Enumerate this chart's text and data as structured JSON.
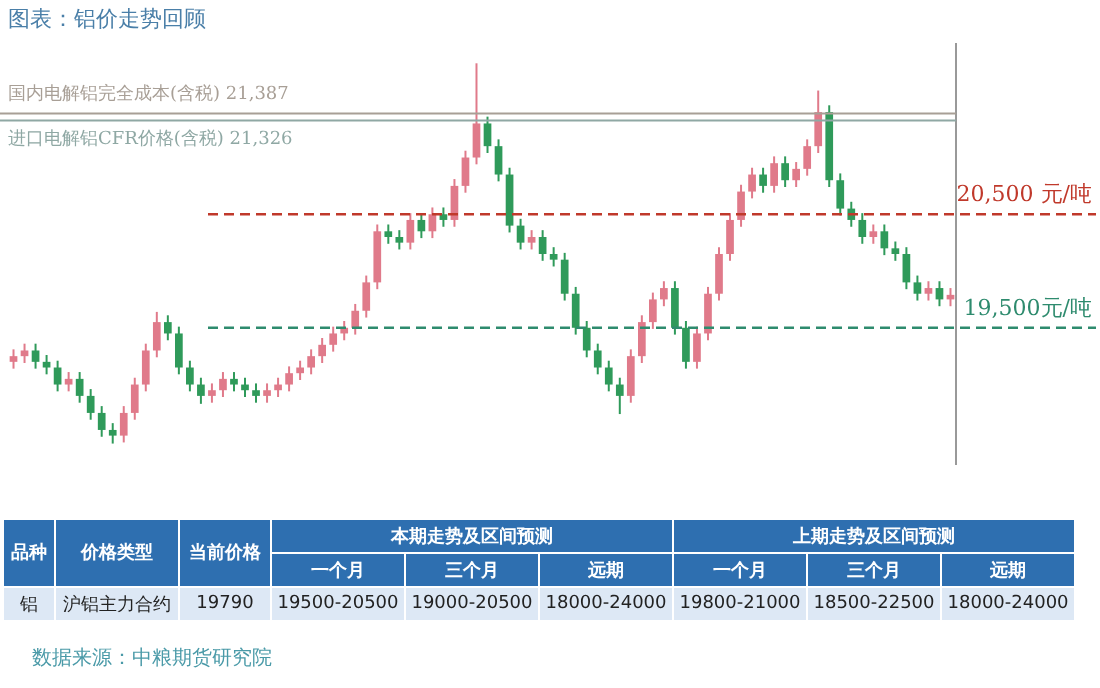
{
  "chart_data": [
    {
      "type": "candlestick",
      "title": "图表：铝价走势回顾",
      "categories": [
        null,
        null,
        null,
        null,
        null,
        null,
        null,
        null,
        null,
        null,
        null,
        null,
        null,
        null,
        null,
        null,
        null,
        null,
        null,
        null,
        null,
        null,
        null,
        null,
        null,
        null,
        null,
        null,
        null,
        null,
        null,
        null,
        null,
        null,
        null,
        null,
        null,
        null,
        null,
        null,
        null,
        null,
        null,
        null,
        null,
        null,
        null,
        null,
        null,
        null,
        null,
        null,
        null,
        null,
        null,
        null,
        null,
        null,
        null,
        null,
        null,
        null,
        null,
        null,
        null,
        null,
        null,
        null,
        null,
        null,
        null,
        null,
        null,
        null,
        null,
        null,
        null,
        null,
        null,
        null,
        null,
        null,
        null,
        null,
        null,
        null
      ],
      "ohlc": [
        [
          19200,
          19310,
          19140,
          19250
        ],
        [
          19250,
          19360,
          19190,
          19300
        ],
        [
          19300,
          19360,
          19140,
          19200
        ],
        [
          19200,
          19260,
          19090,
          19150
        ],
        [
          19150,
          19210,
          18940,
          19000
        ],
        [
          19000,
          19110,
          18940,
          19050
        ],
        [
          19050,
          19110,
          18840,
          18900
        ],
        [
          18900,
          18960,
          18690,
          18750
        ],
        [
          18750,
          18810,
          18540,
          18600
        ],
        [
          18600,
          18660,
          18480,
          18550
        ],
        [
          18550,
          18810,
          18490,
          18750
        ],
        [
          18750,
          19060,
          18690,
          19000
        ],
        [
          19000,
          19360,
          18940,
          19300
        ],
        [
          19300,
          19640,
          19240,
          19550
        ],
        [
          19550,
          19610,
          19390,
          19450
        ],
        [
          19450,
          19510,
          19090,
          19150
        ],
        [
          19150,
          19210,
          18940,
          19000
        ],
        [
          19000,
          19060,
          18830,
          18900
        ],
        [
          18900,
          19010,
          18840,
          18950
        ],
        [
          18950,
          19110,
          18890,
          19050
        ],
        [
          19050,
          19110,
          18940,
          19000
        ],
        [
          19000,
          19060,
          18890,
          18950
        ],
        [
          18950,
          19010,
          18840,
          18900
        ],
        [
          18900,
          19010,
          18840,
          18950
        ],
        [
          18950,
          19060,
          18890,
          19000
        ],
        [
          19000,
          19160,
          18940,
          19100
        ],
        [
          19100,
          19210,
          19040,
          19150
        ],
        [
          19150,
          19310,
          19090,
          19250
        ],
        [
          19250,
          19410,
          19190,
          19350
        ],
        [
          19350,
          19510,
          19290,
          19450
        ],
        [
          19450,
          19560,
          19390,
          19500
        ],
        [
          19500,
          19710,
          19440,
          19650
        ],
        [
          19650,
          19960,
          19590,
          19900
        ],
        [
          19900,
          20410,
          19840,
          20350
        ],
        [
          20350,
          20410,
          20240,
          20300
        ],
        [
          20300,
          20360,
          20190,
          20250
        ],
        [
          20250,
          20510,
          20190,
          20450
        ],
        [
          20450,
          20510,
          20290,
          20350
        ],
        [
          20350,
          20560,
          20290,
          20500
        ],
        [
          20500,
          20560,
          20390,
          20450
        ],
        [
          20450,
          20810,
          20390,
          20750
        ],
        [
          20750,
          21060,
          20690,
          21000
        ],
        [
          21000,
          21830,
          20940,
          21300
        ],
        [
          21300,
          21360,
          21040,
          21100
        ],
        [
          21100,
          21160,
          20790,
          20850
        ],
        [
          20850,
          20910,
          20340,
          20400
        ],
        [
          20400,
          20460,
          20190,
          20250
        ],
        [
          20250,
          20360,
          20190,
          20300
        ],
        [
          20300,
          20360,
          20090,
          20150
        ],
        [
          20150,
          20210,
          20040,
          20100
        ],
        [
          20100,
          20160,
          19740,
          19800
        ],
        [
          19800,
          19860,
          19440,
          19500
        ],
        [
          19500,
          19560,
          19240,
          19300
        ],
        [
          19300,
          19360,
          19090,
          19150
        ],
        [
          19150,
          19210,
          18940,
          19000
        ],
        [
          19000,
          19060,
          18740,
          18900
        ],
        [
          18900,
          19310,
          18840,
          19250
        ],
        [
          19250,
          19610,
          19190,
          19550
        ],
        [
          19550,
          19810,
          19490,
          19750
        ],
        [
          19750,
          19910,
          19690,
          19850
        ],
        [
          19850,
          19910,
          19440,
          19500
        ],
        [
          19500,
          19560,
          19140,
          19200
        ],
        [
          19200,
          19510,
          19140,
          19450
        ],
        [
          19450,
          19860,
          19390,
          19800
        ],
        [
          19800,
          20210,
          19740,
          20150
        ],
        [
          20150,
          20510,
          20090,
          20450
        ],
        [
          20450,
          20760,
          20390,
          20700
        ],
        [
          20700,
          20910,
          20640,
          20850
        ],
        [
          20850,
          20910,
          20690,
          20750
        ],
        [
          20750,
          21010,
          20690,
          20950
        ],
        [
          20950,
          21010,
          20740,
          20800
        ],
        [
          20800,
          20960,
          20740,
          20900
        ],
        [
          20900,
          21160,
          20840,
          21100
        ],
        [
          21100,
          21590,
          21040,
          21400
        ],
        [
          21400,
          21460,
          20740,
          20800
        ],
        [
          20800,
          20860,
          20490,
          20550
        ],
        [
          20550,
          20610,
          20390,
          20450
        ],
        [
          20450,
          20510,
          20240,
          20300
        ],
        [
          20300,
          20410,
          20240,
          20350
        ],
        [
          20350,
          20410,
          20140,
          20200
        ],
        [
          20200,
          20260,
          20090,
          20150
        ],
        [
          20150,
          20210,
          19840,
          19900
        ],
        [
          19900,
          19960,
          19740,
          19800
        ],
        [
          19800,
          19910,
          19740,
          19850
        ],
        [
          19850,
          19910,
          19690,
          19750
        ],
        [
          19750,
          19850,
          19690,
          19790
        ]
      ],
      "colors": [
        "#e07a8a",
        "#e07a8a",
        "#2f9a5a",
        "#2f9a5a",
        "#2f9a5a",
        "#e07a8a",
        "#2f9a5a",
        "#2f9a5a",
        "#2f9a5a",
        "#2f9a5a",
        "#e07a8a",
        "#e07a8a",
        "#e07a8a",
        "#e07a8a",
        "#2f9a5a",
        "#2f9a5a",
        "#2f9a5a",
        "#2f9a5a",
        "#e07a8a",
        "#e07a8a",
        "#2f9a5a",
        "#2f9a5a",
        "#2f9a5a",
        "#e07a8a",
        "#e07a8a",
        "#e07a8a",
        "#e07a8a",
        "#e07a8a",
        "#e07a8a",
        "#e07a8a",
        "#e07a8a",
        "#e07a8a",
        "#e07a8a",
        "#e07a8a",
        "#2f9a5a",
        "#2f9a5a",
        "#e07a8a",
        "#2f9a5a",
        "#e07a8a",
        "#2f9a5a",
        "#e07a8a",
        "#e07a8a",
        "#e07a8a",
        "#2f9a5a",
        "#2f9a5a",
        "#2f9a5a",
        "#2f9a5a",
        "#e07a8a",
        "#2f9a5a",
        "#2f9a5a",
        "#2f9a5a",
        "#2f9a5a",
        "#2f9a5a",
        "#2f9a5a",
        "#2f9a5a",
        "#2f9a5a",
        "#e07a8a",
        "#e07a8a",
        "#e07a8a",
        "#e07a8a",
        "#2f9a5a",
        "#2f9a5a",
        "#e07a8a",
        "#e07a8a",
        "#e07a8a",
        "#e07a8a",
        "#e07a8a",
        "#e07a8a",
        "#2f9a5a",
        "#e07a8a",
        "#2f9a5a",
        "#e07a8a",
        "#e07a8a",
        "#e07a8a",
        "#2f9a5a",
        "#2f9a5a",
        "#2f9a5a",
        "#2f9a5a",
        "#e07a8a",
        "#2f9a5a",
        "#2f9a5a",
        "#2f9a5a",
        "#2f9a5a",
        "#e07a8a",
        "#2f9a5a",
        "#e07a8a"
      ],
      "ylim": [
        18300,
        22000
      ],
      "tick_labels": false,
      "ref_lines": [
        {
          "axis": "y",
          "value": 21387,
          "label": "国内电解铝完全成本(含税) 21,387",
          "color": "#a89f96",
          "line_style": "solid"
        },
        {
          "axis": "y",
          "value": 21326,
          "label": "进口电解铝CFR价格(含税) 21,326",
          "color": "#8fa8a4",
          "line_style": "solid"
        },
        {
          "axis": "y",
          "value": 20500,
          "label": "20,500 元/吨",
          "color": "#c0392b",
          "line_style": "dashed"
        },
        {
          "axis": "y",
          "value": 19500,
          "label": "19,500元/吨",
          "color": "#2e8b6e",
          "line_style": "dashed"
        }
      ],
      "annotations": [
        "数据来源：中粮期货研究院"
      ]
    },
    {
      "type": "other",
      "annotations": [
        "品种",
        "价格类型",
        "当前价格",
        "本期走势及区间预测",
        "上期走势及区间预测",
        "一个月",
        "三个月",
        "远期",
        "一个月",
        "三个月",
        "远期",
        "铝",
        "沪铝主力合约",
        "19790",
        "19500-20500",
        "19000-20500",
        "18000-24000",
        "19800-21000",
        "18500-22500",
        "18000-24000"
      ]
    }
  ]
}
